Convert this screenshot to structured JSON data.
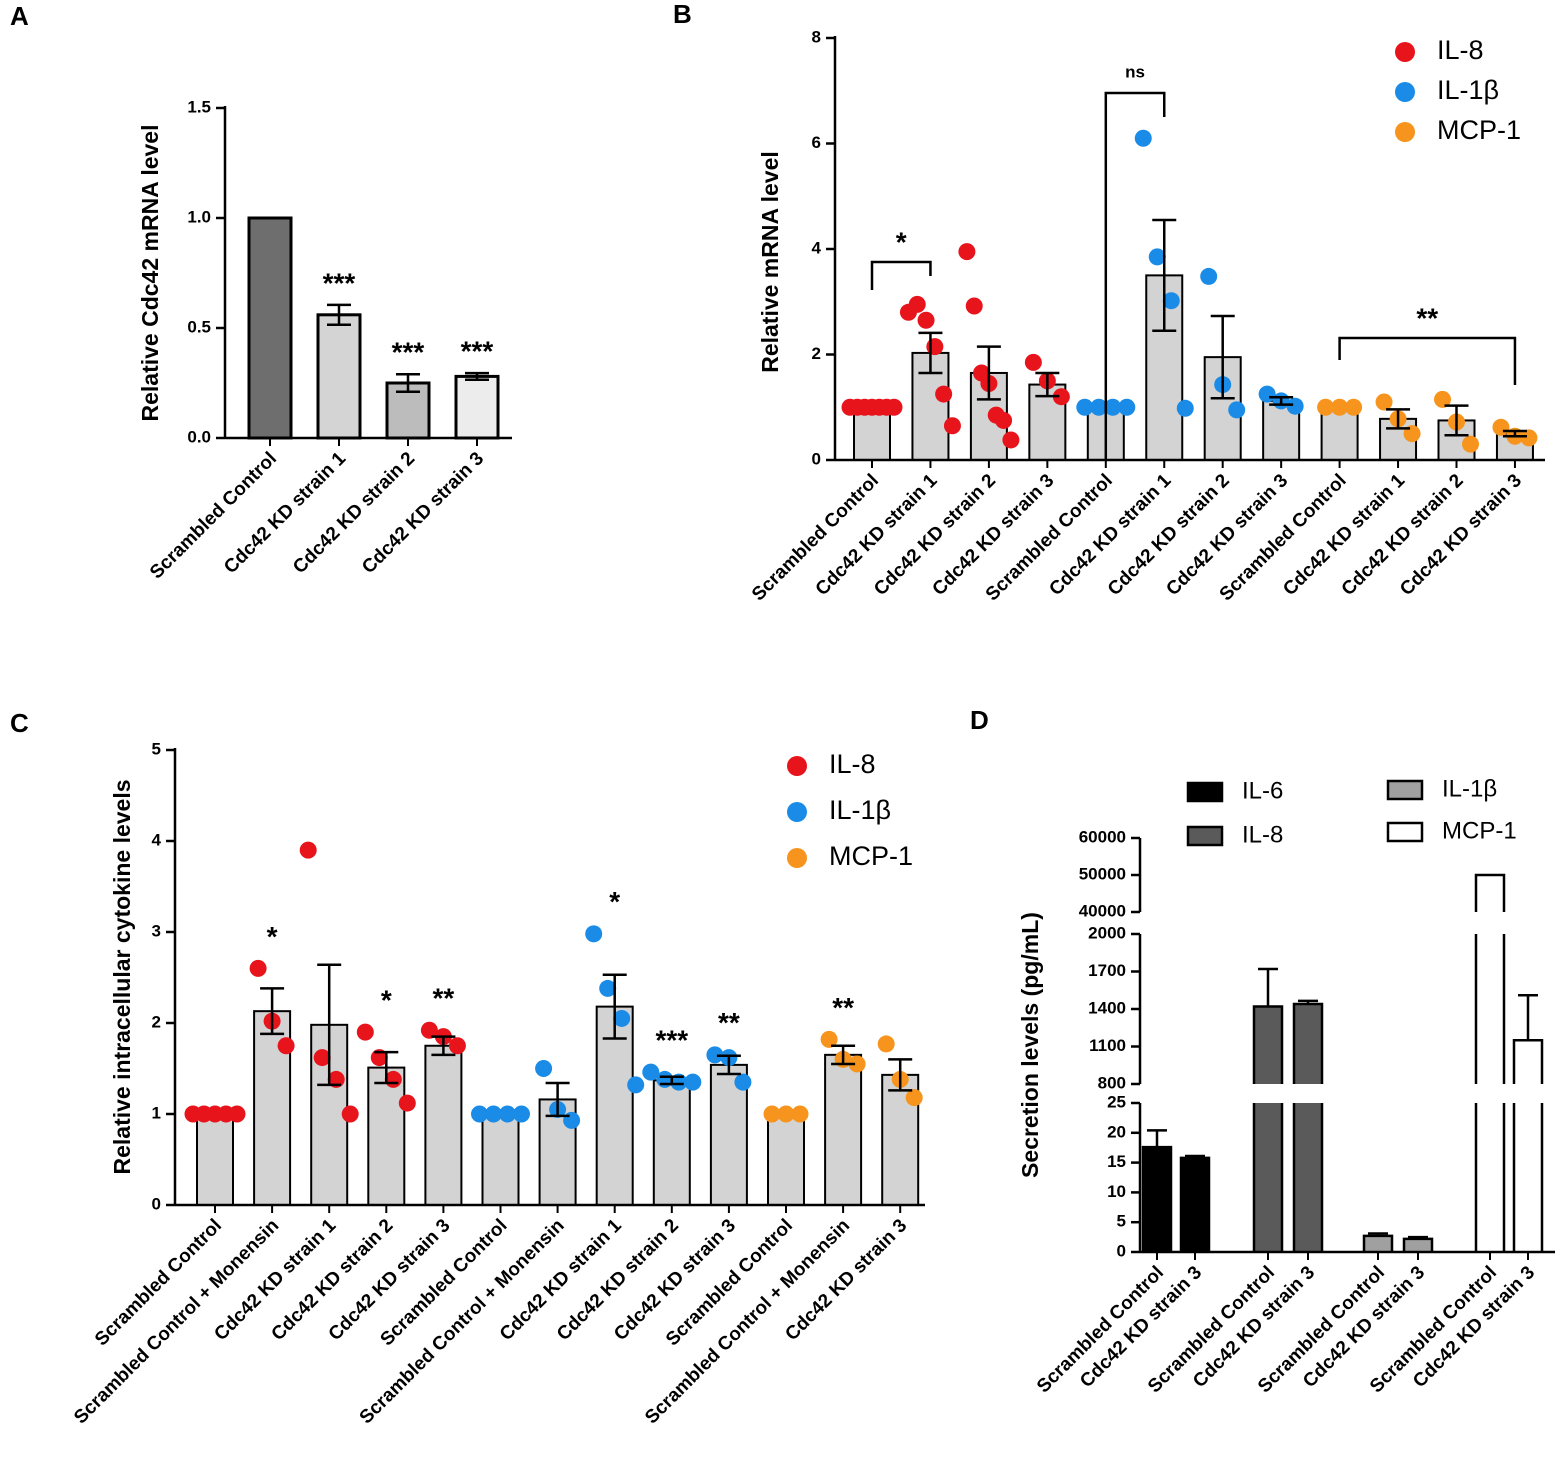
{
  "chart_data": [
    {
      "type": "bar",
      "panel_label": "A",
      "ylabel": "Relative Cdc42 mRNA level",
      "categories": [
        "Scrambled Control",
        "Cdc42 KD strain 1",
        "Cdc42 KD strain 2",
        "Cdc42 KD strain 3"
      ],
      "values": [
        1.0,
        0.56,
        0.25,
        0.28
      ],
      "errors": [
        0,
        0.045,
        0.04,
        0.015
      ],
      "colors": [
        "#6e6e6e",
        "#d4d4d4",
        "#bcbcbc",
        "#ececec"
      ],
      "significance": [
        null,
        "***",
        "***",
        "***"
      ],
      "ylim": [
        0,
        1.5
      ],
      "yticks": [
        {
          "value": 0,
          "label": "0.0"
        },
        {
          "value": 0.5,
          "label": "0.5"
        },
        {
          "value": 1,
          "label": "1.0"
        },
        {
          "value": 1.5,
          "label": "1.5"
        }
      ]
    },
    {
      "type": "dotbar",
      "panel_label": "B",
      "ylabel": "Relative mRNA level",
      "categories": [
        "Scrambled Control",
        "Cdc42 KD strain 1",
        "Cdc42 KD strain 2",
        "Cdc42 KD strain 3",
        "Scrambled Control",
        "Cdc42 KD strain 1",
        "Cdc42 KD strain 2",
        "Cdc42 KD strain 3",
        "Scrambled Control",
        "Cdc42 KD strain 1",
        "Cdc42 KD strain 2",
        "Cdc42 KD strain 3"
      ],
      "ylim": [
        0,
        8
      ],
      "yticks": [
        0,
        2,
        4,
        6,
        8
      ],
      "annotations": [
        "*",
        "ns",
        "**"
      ],
      "series": [
        {
          "name": "IL-8",
          "color": "#e8141c",
          "values": [
            1.0,
            2.03,
            1.65,
            1.43,
            null,
            null,
            null,
            null,
            null,
            null,
            null,
            null
          ],
          "errors": [
            0,
            0.38,
            0.5,
            0.22,
            null,
            null,
            null,
            null,
            null,
            null,
            null,
            null
          ],
          "points": [
            [
              1,
              1,
              1,
              1,
              1,
              1,
              1
            ],
            [
              2.8,
              2.95,
              2.65,
              2.15,
              1.25,
              0.65
            ],
            [
              3.95,
              2.92,
              1.65,
              1.45,
              0.85,
              0.75,
              0.38
            ],
            [
              1.85,
              1.5,
              1.2
            ],
            null,
            null,
            null,
            null,
            null,
            null,
            null,
            null
          ]
        },
        {
          "name": "IL-1β",
          "color": "#1a8ce8",
          "values": [
            null,
            null,
            null,
            null,
            1.0,
            3.5,
            1.95,
            1.12,
            null,
            null,
            null,
            null
          ],
          "errors": [
            null,
            null,
            null,
            null,
            0,
            1.05,
            0.78,
            0.07,
            null,
            null,
            null,
            null
          ],
          "points": [
            null,
            null,
            null,
            null,
            [
              1,
              1,
              1,
              1
            ],
            [
              6.1,
              3.85,
              3.02,
              0.98
            ],
            [
              3.48,
              1.43,
              0.95
            ],
            [
              1.25,
              1.12,
              1.02
            ],
            null,
            null,
            null,
            null
          ]
        },
        {
          "name": "MCP-1",
          "color": "#f7941d",
          "values": [
            null,
            null,
            null,
            null,
            null,
            null,
            null,
            null,
            1.0,
            0.78,
            0.75,
            0.5
          ],
          "errors": [
            null,
            null,
            null,
            null,
            null,
            null,
            null,
            null,
            0,
            0.18,
            0.28,
            0.05
          ],
          "points": [
            null,
            null,
            null,
            null,
            null,
            null,
            null,
            null,
            [
              1,
              1,
              1
            ],
            [
              1.1,
              0.78,
              0.5
            ],
            [
              1.15,
              0.72,
              0.3
            ],
            [
              0.62,
              0.45,
              0.42
            ]
          ]
        }
      ]
    },
    {
      "type": "dotbar",
      "panel_label": "C",
      "ylabel": "Relative intracellular cytokine levels",
      "categories": [
        "Scrambled Control",
        "Scrambled Control + Monensin",
        "Cdc42 KD strain 1",
        "Cdc42 KD strain 2",
        "Cdc42 KD strain 3",
        "Scrambled Control",
        "Scrambled Control + Monensin",
        "Cdc42 KD strain 1",
        "Cdc42 KD strain 2",
        "Cdc42 KD strain 3",
        "Scrambled Control",
        "Scrambled Control + Monensin",
        "Cdc42 KD strain 3"
      ],
      "ylim": [
        0,
        5
      ],
      "yticks": [
        0,
        1,
        2,
        3,
        4,
        5
      ],
      "significance": [
        null,
        "*",
        null,
        "*",
        "**",
        null,
        null,
        "*",
        "***",
        "**",
        null,
        "**",
        null
      ],
      "series": [
        {
          "name": "IL-8",
          "color": "#e8141c",
          "values": [
            1.0,
            2.13,
            1.98,
            1.51,
            1.75,
            null,
            null,
            null,
            null,
            null,
            null,
            null,
            null
          ],
          "errors": [
            0,
            0.25,
            0.66,
            0.17,
            0.1,
            null,
            null,
            null,
            null,
            null,
            null,
            null,
            null
          ],
          "points": [
            [
              1,
              1,
              1,
              1,
              1
            ],
            [
              2.6,
              2.02,
              1.75
            ],
            [
              3.9,
              1.62,
              1.38,
              1.0
            ],
            [
              1.9,
              1.62,
              1.38,
              1.12
            ],
            [
              1.92,
              1.85,
              1.75
            ],
            null,
            null,
            null,
            null,
            null,
            null,
            null,
            null
          ]
        },
        {
          "name": "IL-1β",
          "color": "#1a8ce8",
          "values": [
            null,
            null,
            null,
            null,
            null,
            1.0,
            1.16,
            2.18,
            1.37,
            1.54,
            null,
            null,
            null
          ],
          "errors": [
            null,
            null,
            null,
            null,
            null,
            0,
            0.18,
            0.35,
            0.04,
            0.1,
            null,
            null,
            null
          ],
          "points": [
            null,
            null,
            null,
            null,
            null,
            [
              1,
              1,
              1,
              1
            ],
            [
              1.5,
              1.05,
              0.93
            ],
            [
              2.98,
              2.38,
              2.05,
              1.32
            ],
            [
              1.46,
              1.38,
              1.35,
              1.35
            ],
            [
              1.65,
              1.62,
              1.35
            ],
            null,
            null,
            null
          ]
        },
        {
          "name": "MCP-1",
          "color": "#f7941d",
          "values": [
            null,
            null,
            null,
            null,
            null,
            null,
            null,
            null,
            null,
            null,
            1.0,
            1.65,
            1.43
          ],
          "errors": [
            null,
            null,
            null,
            null,
            null,
            null,
            null,
            null,
            null,
            null,
            0,
            0.1,
            0.17
          ],
          "points": [
            null,
            null,
            null,
            null,
            null,
            null,
            null,
            null,
            null,
            null,
            [
              1,
              1,
              1
            ],
            [
              1.82,
              1.6,
              1.55
            ],
            [
              1.77,
              1.38,
              1.18
            ]
          ]
        }
      ]
    },
    {
      "type": "brokenbar",
      "panel_label": "D",
      "ylabel": "Secretion levels (pg/mL)",
      "categories": [
        "Scrambled Control",
        "Cdc42 KD strain 3",
        "Scrambled Control",
        "Cdc42 KD strain 3",
        "Scrambled Control",
        "Cdc42 KD strain 3",
        "Scrambled Control",
        "Cdc42 KD strain 3"
      ],
      "segments": [
        {
          "ylim": [
            0,
            25
          ],
          "yticks": [
            0,
            5,
            10,
            15,
            20,
            25
          ]
        },
        {
          "ylim": [
            800,
            2000
          ],
          "yticks": [
            800,
            1100,
            1400,
            1700,
            2000
          ]
        },
        {
          "ylim": [
            40000,
            60000
          ],
          "yticks": [
            40000,
            50000,
            60000
          ]
        }
      ],
      "series": [
        {
          "name": "IL-6",
          "color": "#000000",
          "values": [
            17.6,
            15.8,
            null,
            null,
            null,
            null,
            null,
            null
          ],
          "errors": [
            2.8,
            0.3,
            null,
            null,
            null,
            null,
            null,
            null
          ]
        },
        {
          "name": "IL-8",
          "color": "#5a5a5a",
          "values": [
            null,
            null,
            1420,
            1440,
            null,
            null,
            null,
            null
          ],
          "errors": [
            null,
            null,
            300,
            25,
            null,
            null,
            null,
            null
          ]
        },
        {
          "name": "IL-1β",
          "color": "#a0a0a0",
          "values": [
            null,
            null,
            null,
            null,
            2.7,
            2.2,
            null,
            null
          ],
          "errors": [
            null,
            null,
            null,
            null,
            0.4,
            0.3,
            null,
            null
          ]
        },
        {
          "name": "MCP-1",
          "color": "#ffffff",
          "values": [
            null,
            null,
            null,
            null,
            null,
            null,
            50000,
            1150
          ],
          "errors": [
            null,
            null,
            null,
            null,
            null,
            null,
            null,
            360
          ]
        }
      ]
    }
  ]
}
